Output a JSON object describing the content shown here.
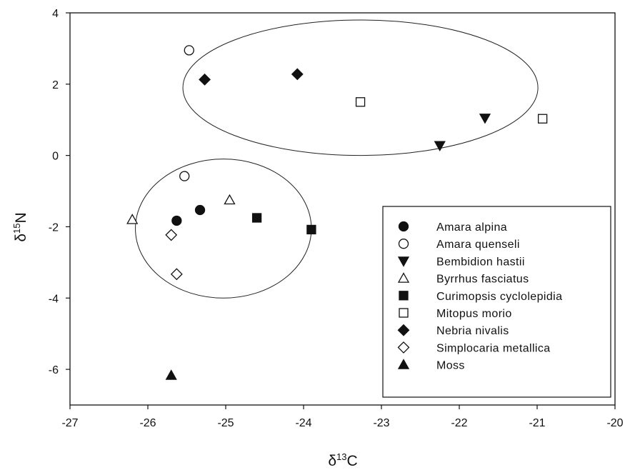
{
  "chart_data": {
    "type": "scatter",
    "title": "",
    "xlabel": {
      "base": "δ",
      "sup": "13",
      "rest": "C"
    },
    "ylabel": {
      "base": "δ",
      "sup": "15",
      "rest": "N"
    },
    "xlim": [
      -27,
      -20
    ],
    "ylim": [
      -7,
      4
    ],
    "xticks": [
      -27,
      -26,
      -25,
      -24,
      -23,
      -22,
      -21,
      -20
    ],
    "yticks": [
      -6,
      -4,
      -2,
      0,
      2,
      4
    ],
    "grid": false,
    "legend_position": "bottom-right",
    "series": [
      {
        "name": "Amara alpina",
        "marker": "circle",
        "filled": true,
        "points": [
          [
            -25.63,
            -1.83
          ],
          [
            -25.33,
            -1.53
          ]
        ]
      },
      {
        "name": "Amara quenseli",
        "marker": "circle",
        "filled": false,
        "points": [
          [
            -25.47,
            2.95
          ],
          [
            -25.53,
            -0.58
          ]
        ]
      },
      {
        "name": "Bembidion hastii",
        "marker": "triangle-down",
        "filled": true,
        "points": [
          [
            -22.25,
            0.28
          ],
          [
            -21.67,
            1.05
          ]
        ]
      },
      {
        "name": "Byrrhus fasciatus",
        "marker": "triangle-up",
        "filled": false,
        "points": [
          [
            -26.2,
            -1.8
          ],
          [
            -24.95,
            -1.25
          ]
        ]
      },
      {
        "name": "Curimopsis cyclolepidia",
        "marker": "square",
        "filled": true,
        "points": [
          [
            -24.6,
            -1.75
          ],
          [
            -23.9,
            -2.08
          ]
        ]
      },
      {
        "name": "Mitopus morio",
        "marker": "square",
        "filled": false,
        "points": [
          [
            -23.27,
            1.5
          ],
          [
            -20.93,
            1.03
          ]
        ]
      },
      {
        "name": "Nebria nivalis",
        "marker": "diamond",
        "filled": true,
        "points": [
          [
            -25.27,
            2.13
          ],
          [
            -24.08,
            2.28
          ]
        ]
      },
      {
        "name": "Simplocaria metallica",
        "marker": "diamond",
        "filled": false,
        "points": [
          [
            -25.7,
            -2.23
          ],
          [
            -25.63,
            -3.33
          ]
        ]
      },
      {
        "name": "Moss",
        "marker": "triangle-up",
        "filled": true,
        "points": [
          [
            -25.7,
            -6.17
          ]
        ]
      }
    ],
    "ellipses": [
      {
        "cx": -23.27,
        "cy": 1.9,
        "rx": 2.28,
        "ry": 1.9
      },
      {
        "cx": -25.03,
        "cy": -2.05,
        "rx": 1.13,
        "ry": 1.95
      }
    ]
  }
}
